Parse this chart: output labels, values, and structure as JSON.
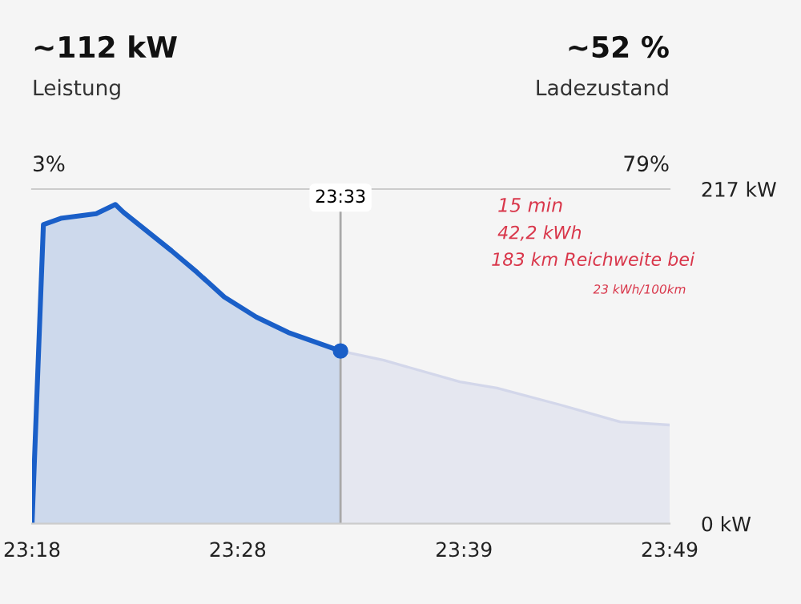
{
  "chart_data": {
    "type": "area",
    "x": [
      23.3,
      23.3092,
      23.3233,
      23.352,
      23.3675,
      23.374,
      23.413,
      23.4337,
      23.4558,
      23.4817,
      23.5077,
      23.55
    ],
    "series": [
      {
        "color": "#1a5fc8",
        "values": [
          0,
          194,
          198,
          201,
          207,
          202,
          177,
          163,
          147,
          134,
          124,
          112
        ]
      },
      {
        "color": "#d3d7ea",
        "x": [
          23.55,
          23.585,
          23.6467,
          23.6767,
          23.7283,
          23.7767,
          23.8167
        ],
        "values": [
          112,
          106,
          92,
          88,
          77,
          66,
          64
        ]
      },
      {
        "type": "scatter",
        "color": "#1a5fc8",
        "x": [
          23.55
        ],
        "values": [
          112
        ]
      }
    ],
    "xlim": [
      23.3,
      23.8167
    ],
    "ylim": [
      0,
      217
    ],
    "xticks": [
      {
        "value": 23.3,
        "label": "23:18"
      },
      {
        "value": 23.4667,
        "label": "23:28"
      },
      {
        "value": 23.65,
        "label": "23:39"
      },
      {
        "value": 23.8167,
        "label": "23:49"
      }
    ],
    "yticks": [
      {
        "value": 0,
        "label": "0 kW"
      },
      {
        "value": 217,
        "label": "217 kW"
      }
    ],
    "ref_lines": [
      {
        "axis": "x",
        "value": 23.55,
        "color": "#a8a8a8"
      }
    ],
    "annotations": [
      "~112 kW",
      "Leistung",
      "~52 %",
      "Ladezustand",
      "3%",
      "79%",
      "15 min",
      "42,2 kWh",
      "183 km Reichweite bei",
      "23 kWh/100km",
      "23:33"
    ],
    "grid": false,
    "legend": false
  }
}
